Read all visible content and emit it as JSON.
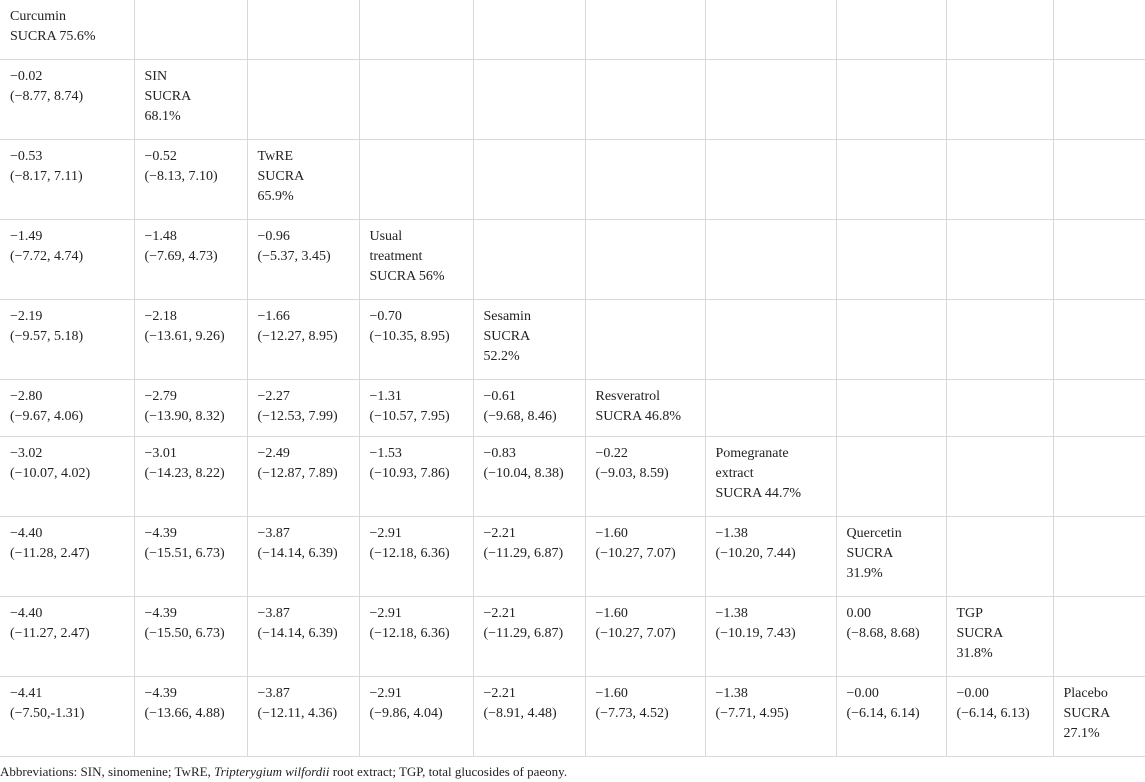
{
  "table": {
    "rows": [
      [
        "Curcumin\nSUCRA 75.6%",
        "",
        "",
        "",
        "",
        "",
        "",
        "",
        "",
        ""
      ],
      [
        "−0.02\n(−8.77, 8.74)",
        "SIN\nSUCRA\n68.1%",
        "",
        "",
        "",
        "",
        "",
        "",
        "",
        ""
      ],
      [
        "−0.53\n(−8.17, 7.11)",
        "−0.52\n(−8.13, 7.10)",
        "TwRE\nSUCRA\n65.9%",
        "",
        "",
        "",
        "",
        "",
        "",
        ""
      ],
      [
        "−1.49\n(−7.72, 4.74)",
        "−1.48\n(−7.69, 4.73)",
        "−0.96\n(−5.37, 3.45)",
        "Usual\ntreatment\nSUCRA 56%",
        "",
        "",
        "",
        "",
        "",
        ""
      ],
      [
        "−2.19\n(−9.57, 5.18)",
        "−2.18\n(−13.61, 9.26)",
        "−1.66\n(−12.27, 8.95)",
        "−0.70\n(−10.35, 8.95)",
        "Sesamin\nSUCRA\n52.2%",
        "",
        "",
        "",
        "",
        ""
      ],
      [
        "−2.80\n(−9.67, 4.06)",
        "−2.79\n(−13.90, 8.32)",
        "−2.27\n(−12.53, 7.99)",
        "−1.31\n(−10.57, 7.95)",
        "−0.61\n(−9.68, 8.46)",
        "Resveratrol\nSUCRA 46.8%",
        "",
        "",
        "",
        ""
      ],
      [
        "−3.02\n(−10.07, 4.02)",
        "−3.01\n(−14.23, 8.22)",
        "−2.49\n(−12.87, 7.89)",
        "−1.53\n(−10.93, 7.86)",
        "−0.83\n(−10.04, 8.38)",
        "−0.22\n(−9.03, 8.59)",
        "Pomegranate\nextract\nSUCRA 44.7%",
        "",
        "",
        ""
      ],
      [
        "−4.40\n(−11.28, 2.47)",
        "−4.39\n(−15.51, 6.73)",
        "−3.87\n(−14.14, 6.39)",
        "−2.91\n(−12.18, 6.36)",
        "−2.21\n(−11.29, 6.87)",
        "−1.60\n(−10.27, 7.07)",
        "−1.38\n(−10.20, 7.44)",
        "Quercetin\nSUCRA\n31.9%",
        "",
        ""
      ],
      [
        "−4.40\n(−11.27, 2.47)",
        "−4.39\n(−15.50, 6.73)",
        "−3.87\n(−14.14, 6.39)",
        "−2.91\n(−12.18, 6.36)",
        "−2.21\n(−11.29, 6.87)",
        "−1.60\n(−10.27, 7.07)",
        "−1.38\n(−10.19, 7.43)",
        "0.00\n(−8.68, 8.68)",
        "TGP\nSUCRA\n31.8%",
        ""
      ],
      [
        "−4.41\n(−7.50,-1.31)",
        "−4.39\n(−13.66, 4.88)",
        "−3.87\n(−12.11, 4.36)",
        "−2.91\n(−9.86, 4.04)",
        "−2.21\n(−8.91, 4.48)",
        "−1.60\n(−7.73, 4.52)",
        "−1.38\n(−7.71, 4.95)",
        "−0.00\n(−6.14, 6.14)",
        "−0.00\n(−6.14, 6.13)",
        "Placebo\nSUCRA\n27.1%"
      ]
    ]
  },
  "footnote": {
    "prefix": "Abbreviations: SIN, sinomenine; TwRE, ",
    "italic": "Tripterygium wilfordii",
    "suffix": " root extract; TGP, total glucosides of paeony."
  }
}
